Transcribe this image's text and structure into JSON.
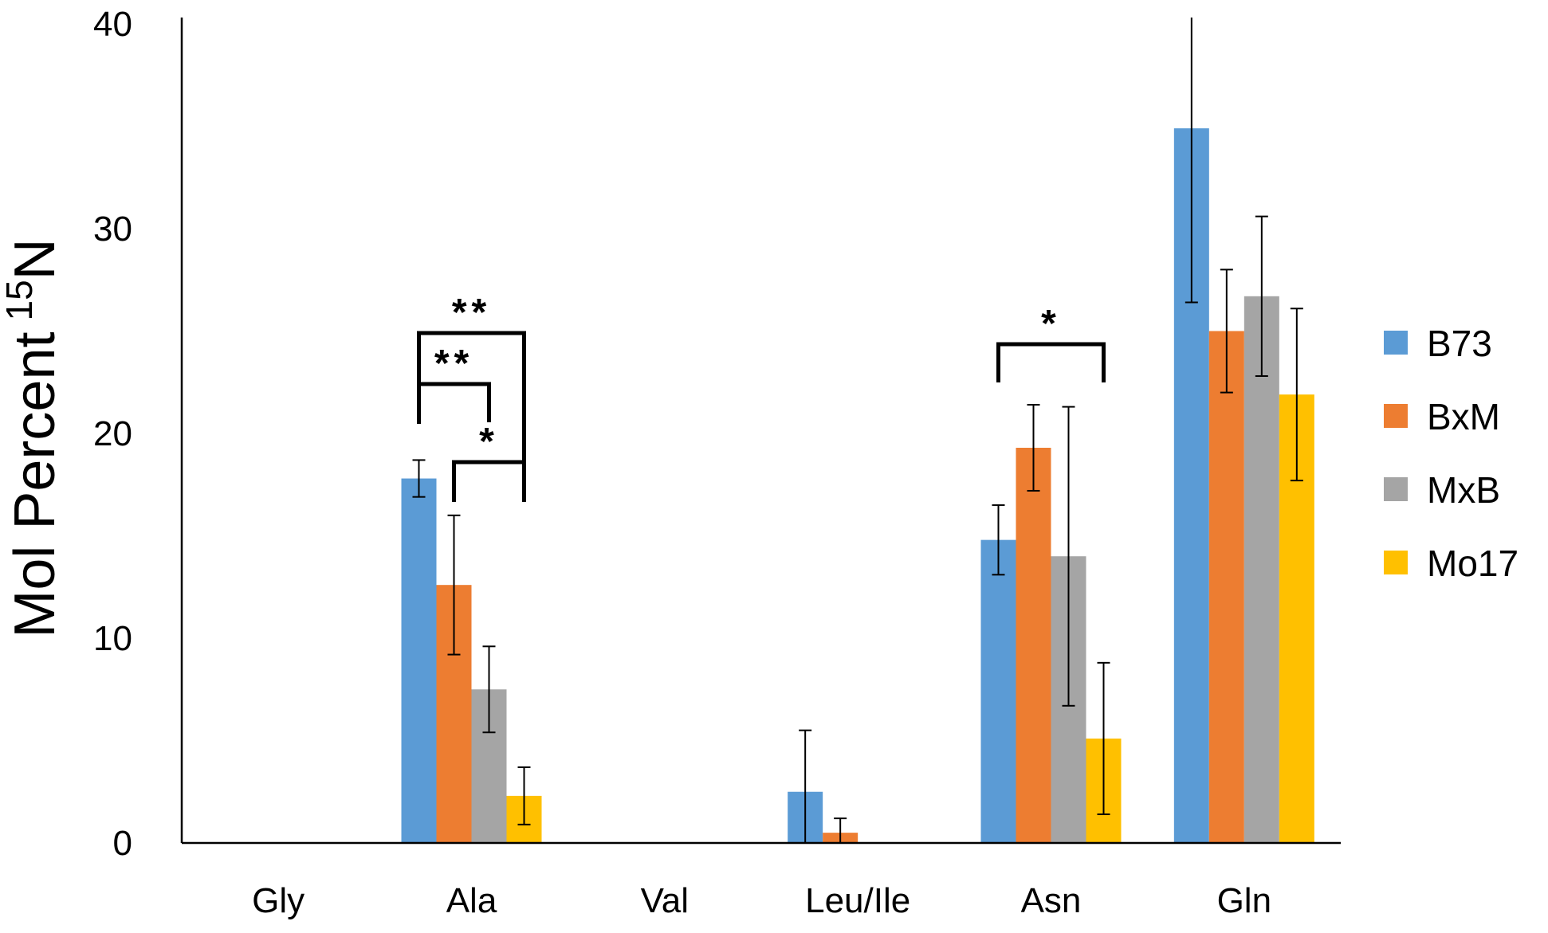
{
  "chart_data": {
    "type": "bar",
    "title": "",
    "xlabel": "",
    "ylabel": "Mol Percent",
    "ylabel_superscript": "15",
    "ylabel_suffix": "N",
    "ylim": [
      0,
      40
    ],
    "yticks": [
      "0",
      "10",
      "20",
      "30",
      "40"
    ],
    "grid": false,
    "legend_position": "right",
    "categories": [
      "Gly",
      "Ala",
      "Val",
      "Leu/Ile",
      "Asn",
      "Gln"
    ],
    "series": [
      {
        "name": "B73",
        "color": "#5B9BD5",
        "values": [
          0,
          17.8,
          0,
          2.5,
          14.8,
          34.9
        ],
        "errors": [
          0,
          0.9,
          0,
          3.0,
          1.7,
          8.5
        ]
      },
      {
        "name": "BxM",
        "color": "#ED7D31",
        "values": [
          0,
          12.6,
          0,
          0.5,
          19.3,
          25.0
        ],
        "errors": [
          0,
          3.4,
          0,
          0.7,
          2.1,
          3.0
        ]
      },
      {
        "name": "MxB",
        "color": "#A5A5A5",
        "values": [
          0,
          7.5,
          0,
          0,
          14.0,
          26.7
        ],
        "errors": [
          0,
          2.1,
          0,
          0,
          7.3,
          3.9
        ]
      },
      {
        "name": "Mo17",
        "color": "#FFC000",
        "values": [
          0,
          2.3,
          0,
          0,
          5.1,
          21.9
        ],
        "errors": [
          0,
          1.4,
          0,
          0,
          3.7,
          4.2
        ]
      }
    ],
    "annotations": [
      {
        "category": "Ala",
        "from": "B73",
        "to": "Mo17",
        "label": "**"
      },
      {
        "category": "Ala",
        "from": "B73",
        "to": "MxB",
        "label": "**"
      },
      {
        "category": "Ala",
        "from": "BxM",
        "to": "Mo17",
        "label": "*"
      },
      {
        "category": "Asn",
        "from": "B73",
        "to": "Mo17",
        "label": "*"
      }
    ]
  }
}
